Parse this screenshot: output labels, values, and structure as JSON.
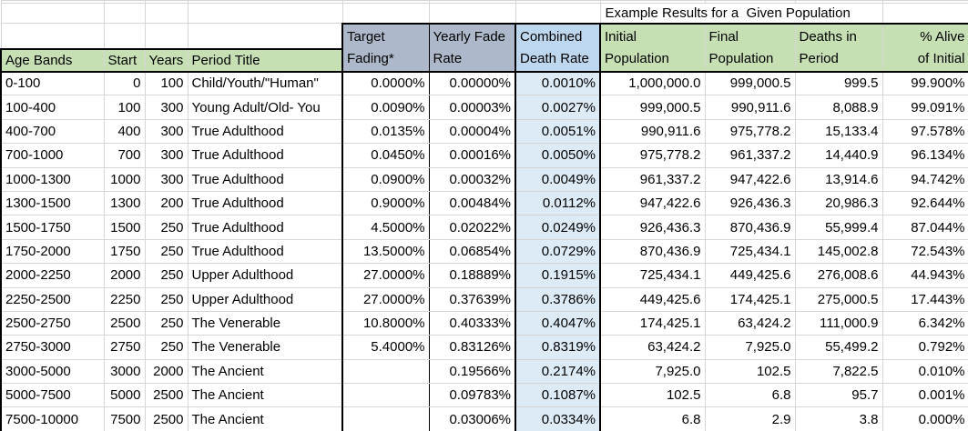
{
  "title": "Example Results for a  Given Population",
  "columns": [
    {
      "id": "age-bands",
      "label": "Age Bands"
    },
    {
      "id": "start",
      "label": "Start"
    },
    {
      "id": "years",
      "label": "Years"
    },
    {
      "id": "period-title",
      "label": "Period Title"
    },
    {
      "id": "target-fading",
      "line1": "Target",
      "line2": "Fading*"
    },
    {
      "id": "yearly-fade-rate",
      "line1": "Yearly Fade",
      "line2": "Rate"
    },
    {
      "id": "combined-death-rate",
      "line1": "Combined",
      "line2": "Death Rate"
    },
    {
      "id": "initial-population",
      "line1": "Initial",
      "line2": "Population"
    },
    {
      "id": "final-population",
      "line1": "Final",
      "line2": "Population"
    },
    {
      "id": "deaths-in-period",
      "line1": "Deaths in",
      "line2": "Period"
    },
    {
      "id": "pct-alive-of-initial",
      "line1": "% Alive",
      "line2": "of Initial"
    }
  ],
  "rows": [
    [
      "0-100",
      "0",
      "100",
      "Child/Youth/\"Human\"",
      "0.0000%",
      "0.00000%",
      "0.0010%",
      "1,000,000.0",
      "999,000.5",
      "999.5",
      "99.900%"
    ],
    [
      "100-400",
      "100",
      "300",
      "Young Adult/Old- You",
      "0.0090%",
      "0.00003%",
      "0.0027%",
      "999,000.5",
      "990,911.6",
      "8,088.9",
      "99.091%"
    ],
    [
      "400-700",
      "400",
      "300",
      "True Adulthood",
      "0.0135%",
      "0.00004%",
      "0.0051%",
      "990,911.6",
      "975,778.2",
      "15,133.4",
      "97.578%"
    ],
    [
      "700-1000",
      "700",
      "300",
      "True Adulthood",
      "0.0450%",
      "0.00016%",
      "0.0050%",
      "975,778.2",
      "961,337.2",
      "14,440.9",
      "96.134%"
    ],
    [
      "1000-1300",
      "1000",
      "300",
      "True Adulthood",
      "0.0900%",
      "0.00032%",
      "0.0049%",
      "961,337.2",
      "947,422.6",
      "13,914.6",
      "94.742%"
    ],
    [
      "1300-1500",
      "1300",
      "200",
      "True Adulthood",
      "0.9000%",
      "0.00484%",
      "0.0112%",
      "947,422.6",
      "926,436.3",
      "20,986.3",
      "92.644%"
    ],
    [
      "1500-1750",
      "1500",
      "250",
      "True Adulthood",
      "4.5000%",
      "0.02022%",
      "0.0249%",
      "926,436.3",
      "870,436.9",
      "55,999.4",
      "87.044%"
    ],
    [
      "1750-2000",
      "1750",
      "250",
      "True Adulthood",
      "13.5000%",
      "0.06854%",
      "0.0729%",
      "870,436.9",
      "725,434.1",
      "145,002.8",
      "72.543%"
    ],
    [
      "2000-2250",
      "2000",
      "250",
      "Upper Adulthood",
      "27.0000%",
      "0.18889%",
      "0.1915%",
      "725,434.1",
      "449,425.6",
      "276,008.6",
      "44.943%"
    ],
    [
      "2250-2500",
      "2250",
      "250",
      "Upper Adulthood",
      "27.0000%",
      "0.37639%",
      "0.3786%",
      "449,425.6",
      "174,425.1",
      "275,000.5",
      "17.443%"
    ],
    [
      "2500-2750",
      "2500",
      "250",
      "The Venerable",
      "10.8000%",
      "0.40333%",
      "0.4047%",
      "174,425.1",
      "63,424.2",
      "111,000.9",
      "6.342%"
    ],
    [
      "2750-3000",
      "2750",
      "250",
      "The Venerable",
      "5.4000%",
      "0.83126%",
      "0.8319%",
      "63,424.2",
      "7,925.0",
      "55,499.2",
      "0.792%"
    ],
    [
      "3000-5000",
      "3000",
      "2000",
      "The Ancient",
      "",
      "0.19566%",
      "0.2174%",
      "7,925.0",
      "102.5",
      "7,822.5",
      "0.010%"
    ],
    [
      "5000-7500",
      "5000",
      "2500",
      "The Ancient",
      "",
      "0.09783%",
      "0.1087%",
      "102.5",
      "6.8",
      "95.7",
      "0.001%"
    ],
    [
      "7500-10000",
      "7500",
      "2500",
      "The Ancient",
      "",
      "0.03006%",
      "0.0334%",
      "6.8",
      "2.9",
      "3.8",
      "0.000%"
    ]
  ],
  "colors": {
    "header_green": "#C6E0B4",
    "header_bluegray": "#ADB9CA",
    "header_blue": "#BDD7EE",
    "column_lightblue": "#DDEBF7",
    "gridline": "#D6D6D6",
    "thick_border": "#000000"
  }
}
